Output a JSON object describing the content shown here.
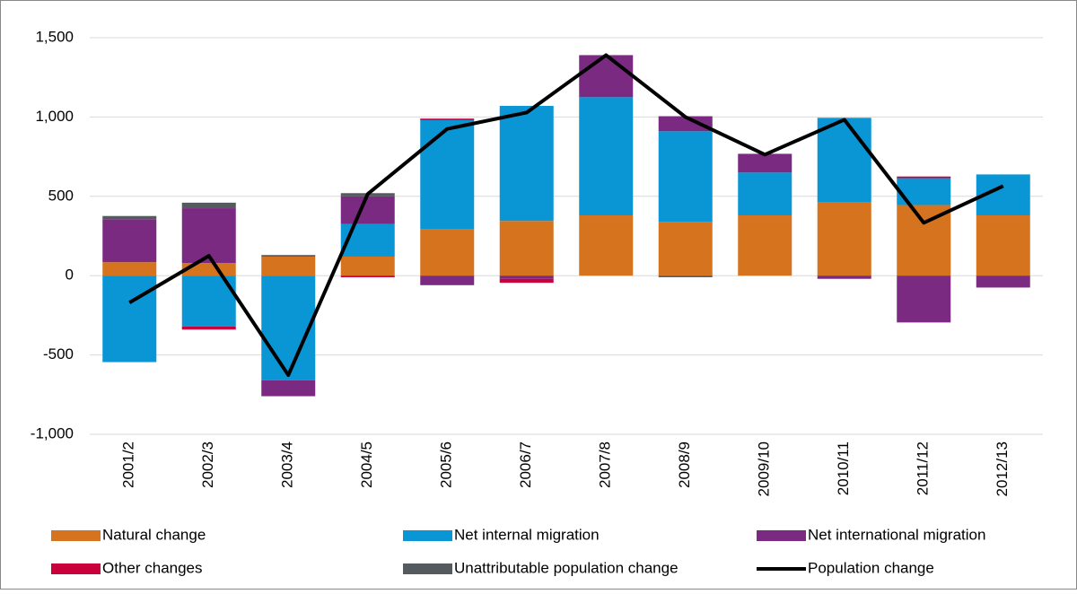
{
  "chart_data": {
    "type": "bar",
    "stacked": true,
    "categories": [
      "2001/2",
      "2002/3",
      "2003/4",
      "2004/5",
      "2005/6",
      "2006/7",
      "2007/8",
      "2008/9",
      "2009/10",
      "2010/11",
      "2011/12",
      "2012/13"
    ],
    "ylim": [
      -1000,
      1500
    ],
    "yticks": [
      {
        "value": -1000,
        "label": "-1,000"
      },
      -500,
      0,
      500,
      {
        "value": 1000,
        "label": "1,000"
      },
      {
        "value": 1500,
        "label": "1,500"
      }
    ],
    "grid": true,
    "series": [
      {
        "name": "Natural change",
        "color": "#d6731e",
        "values": [
          85,
          80,
          120,
          120,
          295,
          345,
          380,
          340,
          380,
          465,
          445,
          380
        ]
      },
      {
        "name": "Net internal migration",
        "color": "#0a96d4",
        "values": [
          -545,
          -320,
          -660,
          205,
          685,
          725,
          745,
          570,
          270,
          530,
          170,
          258
        ]
      },
      {
        "name": "Net international migration",
        "color": "#7b2a82",
        "values": [
          271,
          345,
          -100,
          175,
          -60,
          -20,
          265,
          95,
          118,
          -20,
          -295,
          -75
        ]
      },
      {
        "name": "Other changes",
        "color": "#c8003c",
        "values": [
          0,
          -20,
          0,
          -10,
          10,
          -25,
          0,
          0,
          0,
          0,
          10,
          0
        ]
      },
      {
        "name": "Unattributable population change",
        "color": "#555a5f",
        "values": [
          20,
          35,
          10,
          20,
          0,
          0,
          0,
          -10,
          0,
          0,
          0,
          0
        ]
      },
      {
        "name": "Population change",
        "color": "#000000",
        "type": "line",
        "values": [
          -170,
          125,
          -627,
          515,
          925,
          1028,
          1390,
          1000,
          763,
          983,
          333,
          565
        ]
      }
    ]
  }
}
